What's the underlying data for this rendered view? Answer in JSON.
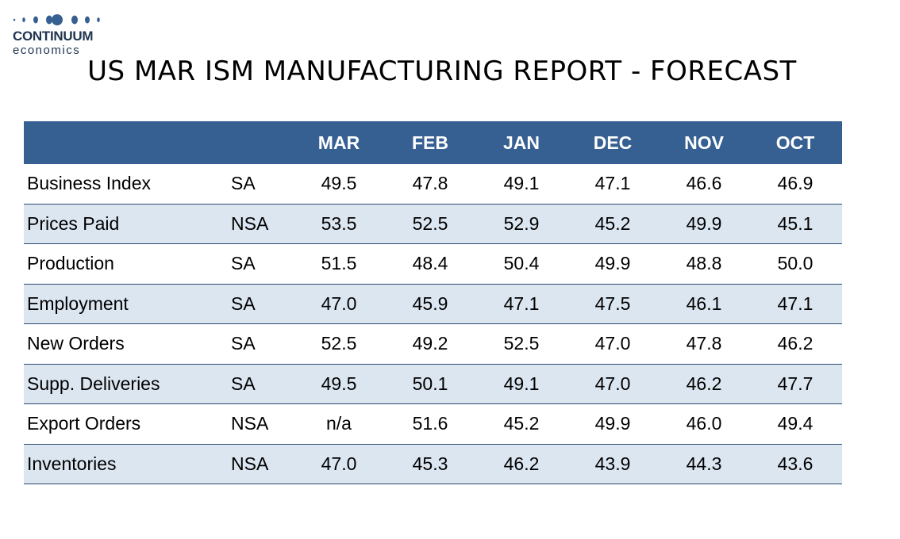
{
  "logo": {
    "name": "CONTINUUM",
    "subtitle": "economics",
    "dot_color": "#366092"
  },
  "title": "US MAR ISM MANUFACTURING REPORT - FORECAST",
  "colors": {
    "header_bg": "#366092",
    "header_text": "#ffffff",
    "alt_row_bg": "#dce6f1",
    "rule": "#2b4a6f"
  },
  "table": {
    "columns": [
      "MAR",
      "FEB",
      "JAN",
      "DEC",
      "NOV",
      "OCT"
    ],
    "rows": [
      {
        "label": "Business Index",
        "adj": "SA",
        "values": [
          "49.5",
          "47.8",
          "49.1",
          "47.1",
          "46.6",
          "46.9"
        ]
      },
      {
        "label": "Prices Paid",
        "adj": "NSA",
        "values": [
          "53.5",
          "52.5",
          "52.9",
          "45.2",
          "49.9",
          "45.1"
        ]
      },
      {
        "label": "Production",
        "adj": "SA",
        "values": [
          "51.5",
          "48.4",
          "50.4",
          "49.9",
          "48.8",
          "50.0"
        ]
      },
      {
        "label": "Employment",
        "adj": "SA",
        "values": [
          "47.0",
          "45.9",
          "47.1",
          "47.5",
          "46.1",
          "47.1"
        ]
      },
      {
        "label": "New Orders",
        "adj": "SA",
        "values": [
          "52.5",
          "49.2",
          "52.5",
          "47.0",
          "47.8",
          "46.2"
        ]
      },
      {
        "label": "Supp. Deliveries",
        "adj": "SA",
        "values": [
          "49.5",
          "50.1",
          "49.1",
          "47.0",
          "46.2",
          "47.7"
        ]
      },
      {
        "label": "Export Orders",
        "adj": "NSA",
        "values": [
          "n/a",
          "51.6",
          "45.2",
          "49.9",
          "46.0",
          "49.4"
        ]
      },
      {
        "label": "Inventories",
        "adj": "NSA",
        "values": [
          "47.0",
          "45.3",
          "46.2",
          "43.9",
          "44.3",
          "43.6"
        ]
      }
    ]
  }
}
